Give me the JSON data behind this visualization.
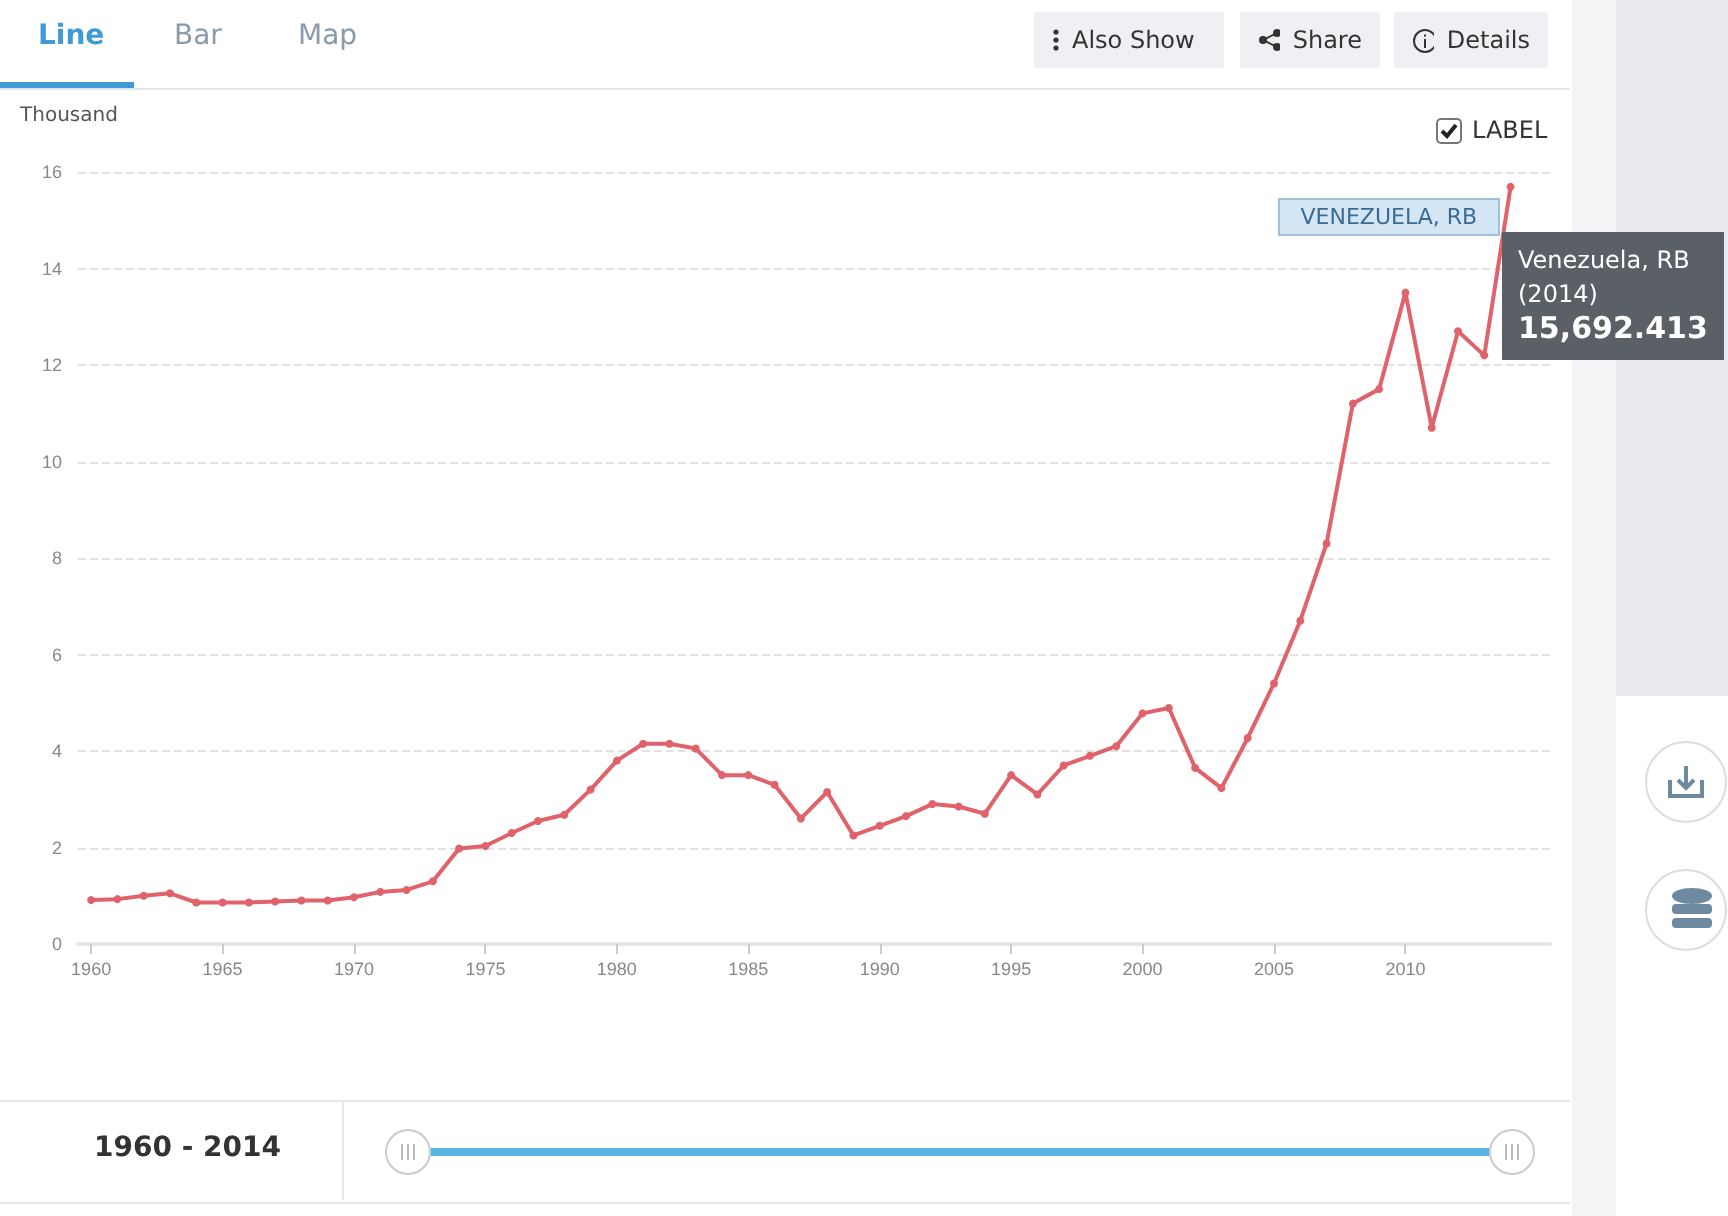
{
  "chart_data": {
    "type": "line",
    "ylabel": "Thousand",
    "x": [
      1960,
      1961,
      1962,
      1963,
      1964,
      1965,
      1966,
      1967,
      1968,
      1969,
      1970,
      1971,
      1972,
      1973,
      1974,
      1975,
      1976,
      1977,
      1978,
      1979,
      1980,
      1981,
      1982,
      1983,
      1984,
      1985,
      1986,
      1987,
      1988,
      1989,
      1990,
      1991,
      1992,
      1993,
      1994,
      1995,
      1996,
      1997,
      1998,
      1999,
      2000,
      2001,
      2002,
      2003,
      2004,
      2005,
      2006,
      2007,
      2008,
      2009,
      2010,
      2011,
      2012,
      2013,
      2014
    ],
    "series": [
      {
        "name": "VENEZUELA, RB",
        "color": "#e0626a",
        "values": [
          0.91,
          0.93,
          1.0,
          1.05,
          0.86,
          0.86,
          0.86,
          0.88,
          0.9,
          0.9,
          0.97,
          1.08,
          1.12,
          1.3,
          1.98,
          2.03,
          2.3,
          2.55,
          2.68,
          3.2,
          3.8,
          4.15,
          4.15,
          4.05,
          3.5,
          3.5,
          3.3,
          2.6,
          3.15,
          2.25,
          2.45,
          2.65,
          2.9,
          2.85,
          2.7,
          3.5,
          3.1,
          3.7,
          3.9,
          4.1,
          4.78,
          4.89,
          3.65,
          3.23,
          4.27,
          5.4,
          6.7,
          8.3,
          11.2,
          11.5,
          13.5,
          10.7,
          12.7,
          12.2,
          15.692413
        ]
      }
    ],
    "xlim": [
      1959.5,
      2015.5
    ],
    "xticks": [
      1960,
      1965,
      1970,
      1975,
      1980,
      1985,
      1990,
      1995,
      2000,
      2005,
      2010
    ],
    "ylim": [
      0,
      16
    ],
    "yticks": [
      0,
      2,
      4,
      6,
      8,
      10,
      12,
      14,
      16
    ],
    "grid": "y",
    "marker": "circle",
    "line_style": "solid",
    "legend": false,
    "annotations": [
      "Line",
      "Bar",
      "Map",
      "Also Show",
      "Share",
      "Details",
      "LABEL",
      "1960 - 2014",
      {
        "text": "Venezuela, RB\n(2014)\n15,692.413",
        "x": 2014,
        "y": 15.692413
      }
    ]
  }
}
